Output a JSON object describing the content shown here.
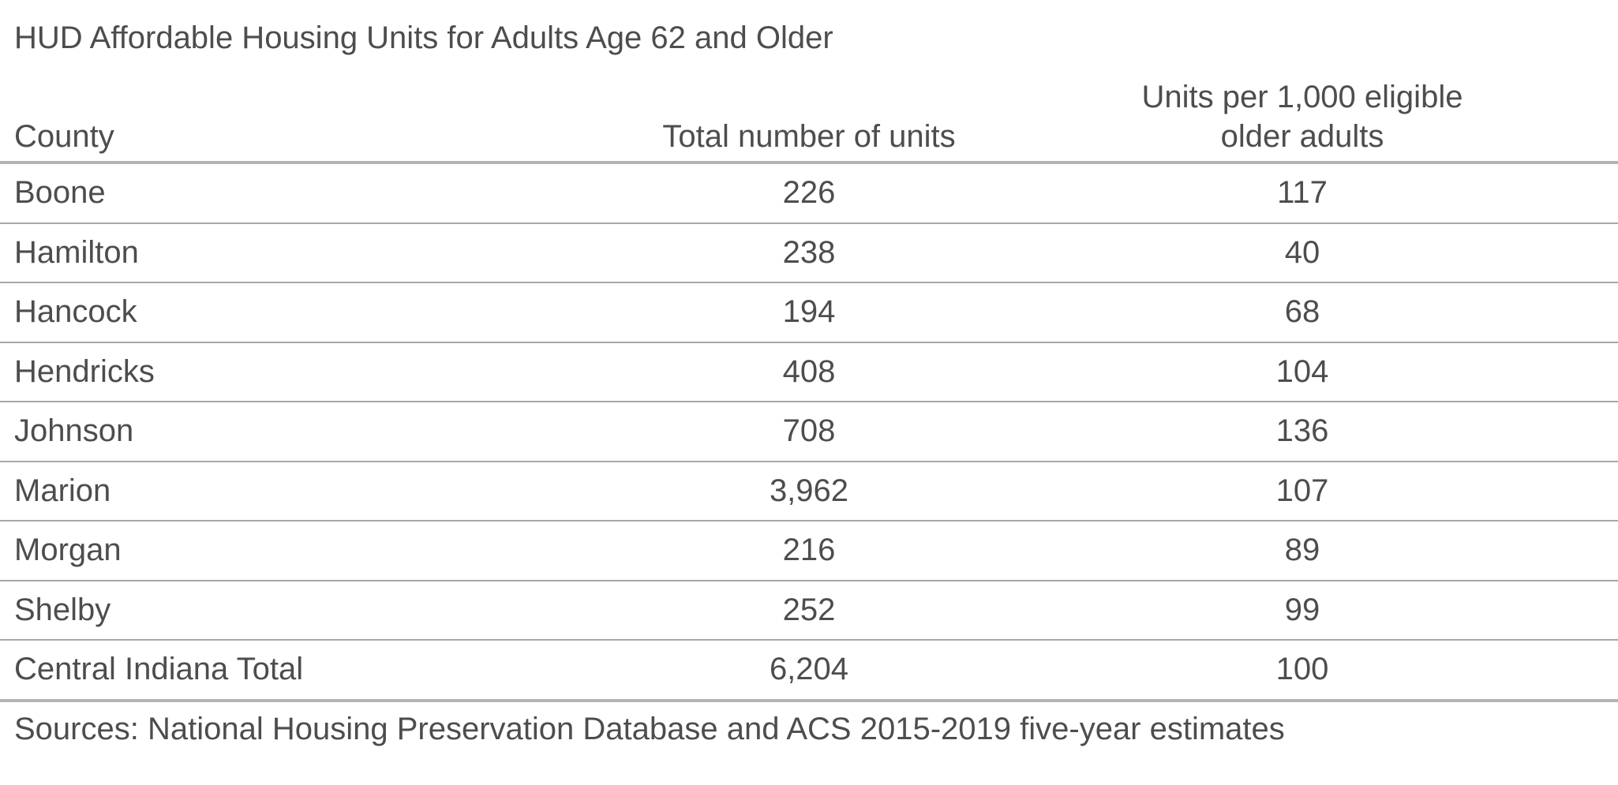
{
  "title": "HUD Affordable Housing Units for Adults Age 62 and Older",
  "headers": {
    "county": "County",
    "total": "Total number of units",
    "rate_line1": "Units per 1,000 eligible",
    "rate_line2": "older adults"
  },
  "rows": [
    {
      "county": "Boone",
      "total": "226",
      "rate": "117"
    },
    {
      "county": "Hamilton",
      "total": "238",
      "rate": "40"
    },
    {
      "county": "Hancock",
      "total": "194",
      "rate": "68"
    },
    {
      "county": "Hendricks",
      "total": "408",
      "rate": "104"
    },
    {
      "county": "Johnson",
      "total": "708",
      "rate": "136"
    },
    {
      "county": "Marion",
      "total": "3,962",
      "rate": "107"
    },
    {
      "county": "Morgan",
      "total": "216",
      "rate": "89"
    },
    {
      "county": "Shelby",
      "total": "252",
      "rate": "99"
    },
    {
      "county": "Central Indiana Total",
      "total": "6,204",
      "rate": "100"
    }
  ],
  "source": "Sources: National Housing Preservation Database and ACS 2015-2019 five-year estimates",
  "colors": {
    "text": "#4d4d4f",
    "rule": "#b3b3b3"
  }
}
